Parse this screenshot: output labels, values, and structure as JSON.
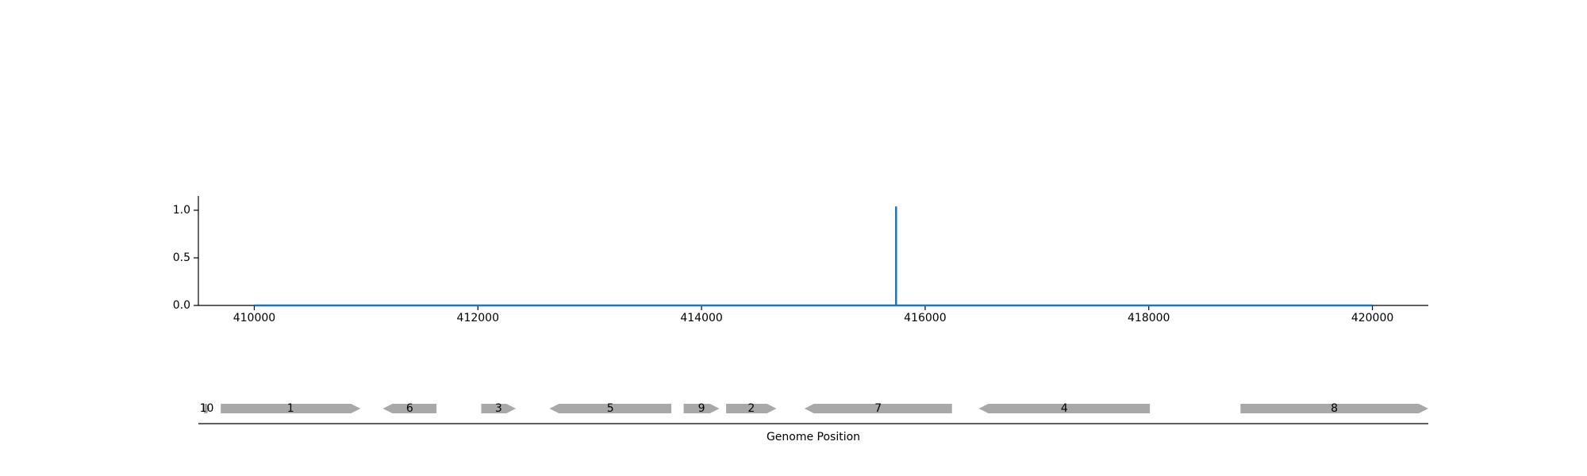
{
  "chart_data": [
    {
      "type": "line",
      "title": "",
      "xlabel": "",
      "ylabel": "",
      "xlim": [
        409500,
        420500
      ],
      "ylim": [
        0,
        1.15
      ],
      "x_ticks": [
        410000,
        412000,
        414000,
        416000,
        418000,
        420000
      ],
      "y_ticks": [
        0.0,
        0.5,
        1.0
      ],
      "y_tick_labels": [
        "0.0",
        "0.5",
        "1.0"
      ],
      "grid": false,
      "legend": "none",
      "series": [
        {
          "color": "#1f77b4",
          "x": [
            410000,
            415740,
            415740,
            415740,
            420000
          ],
          "y": [
            0,
            0,
            1.04,
            0,
            0
          ]
        }
      ]
    },
    {
      "type": "gene-track",
      "xlabel": "Genome Position",
      "xlim": [
        409500,
        420500
      ],
      "color": "#a8a8a8",
      "genes": [
        {
          "label": "10",
          "start": 409550,
          "end": 409600,
          "strand": "+"
        },
        {
          "label": "1",
          "start": 409700,
          "end": 410950,
          "strand": "+"
        },
        {
          "label": "6",
          "start": 411150,
          "end": 411630,
          "strand": "-"
        },
        {
          "label": "3",
          "start": 412030,
          "end": 412340,
          "strand": "+"
        },
        {
          "label": "5",
          "start": 412640,
          "end": 413730,
          "strand": "-"
        },
        {
          "label": "9",
          "start": 413840,
          "end": 414160,
          "strand": "+"
        },
        {
          "label": "2",
          "start": 414220,
          "end": 414670,
          "strand": "+"
        },
        {
          "label": "7",
          "start": 414920,
          "end": 416240,
          "strand": "-"
        },
        {
          "label": "4",
          "start": 416480,
          "end": 418010,
          "strand": "-"
        },
        {
          "label": "8",
          "start": 418820,
          "end": 420500,
          "strand": "+"
        }
      ]
    }
  ]
}
